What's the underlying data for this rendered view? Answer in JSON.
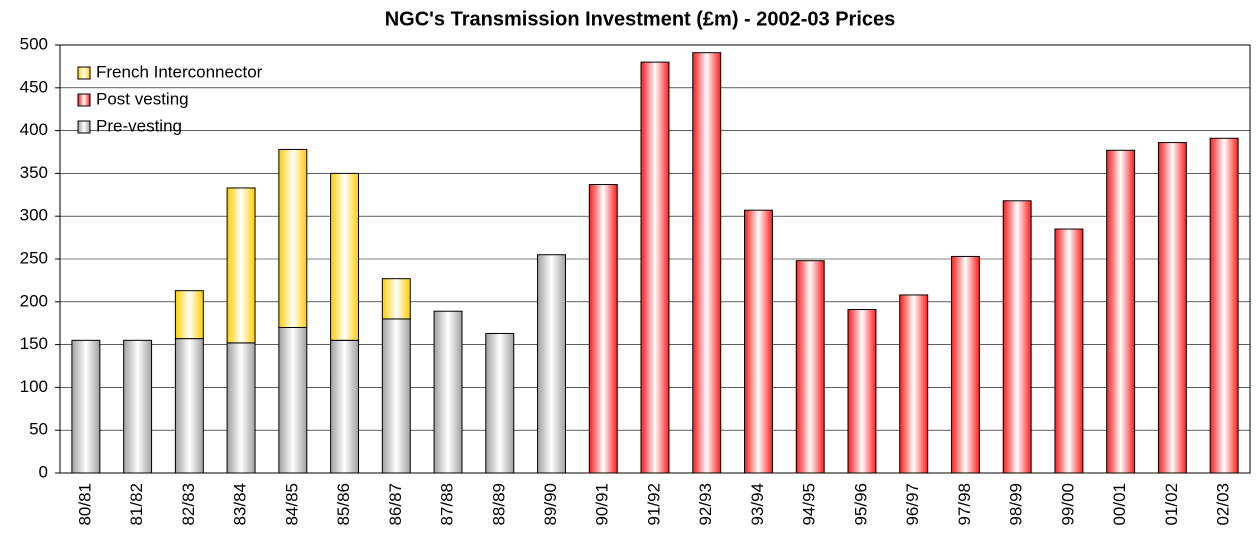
{
  "chart_data": {
    "type": "bar",
    "stacked": true,
    "title": "NGC's Transmission Investment (£m) - 2002-03 Prices",
    "categories": [
      "80/81",
      "81/82",
      "82/83",
      "83/84",
      "84/85",
      "85/86",
      "86/87",
      "87/88",
      "88/89",
      "89/90",
      "90/91",
      "91/92",
      "92/93",
      "93/94",
      "94/95",
      "95/96",
      "96/97",
      "97/98",
      "98/99",
      "99/00",
      "00/01",
      "01/02",
      "02/03"
    ],
    "series": [
      {
        "name": "Pre-vesting",
        "color": "#a0a0a0",
        "values": [
          155,
          155,
          157,
          152,
          170,
          155,
          180,
          189,
          163,
          255,
          null,
          null,
          null,
          null,
          null,
          null,
          null,
          null,
          null,
          null,
          null,
          null,
          null
        ]
      },
      {
        "name": "Post vesting",
        "color": "#ff1a1a",
        "values": [
          null,
          null,
          null,
          null,
          null,
          null,
          null,
          null,
          null,
          null,
          337,
          480,
          491,
          307,
          248,
          191,
          208,
          253,
          318,
          285,
          377,
          386,
          391
        ]
      },
      {
        "name": "French Interconnector",
        "color": "#ffcc00",
        "values": [
          null,
          null,
          56,
          181,
          208,
          195,
          47,
          null,
          null,
          null,
          null,
          null,
          null,
          null,
          null,
          null,
          null,
          null,
          null,
          null,
          null,
          null,
          null
        ]
      }
    ],
    "ylim": [
      0,
      500
    ],
    "yticks": [
      0,
      50,
      100,
      150,
      200,
      250,
      300,
      350,
      400,
      450,
      500
    ],
    "grid": true,
    "legend": "top-left"
  }
}
